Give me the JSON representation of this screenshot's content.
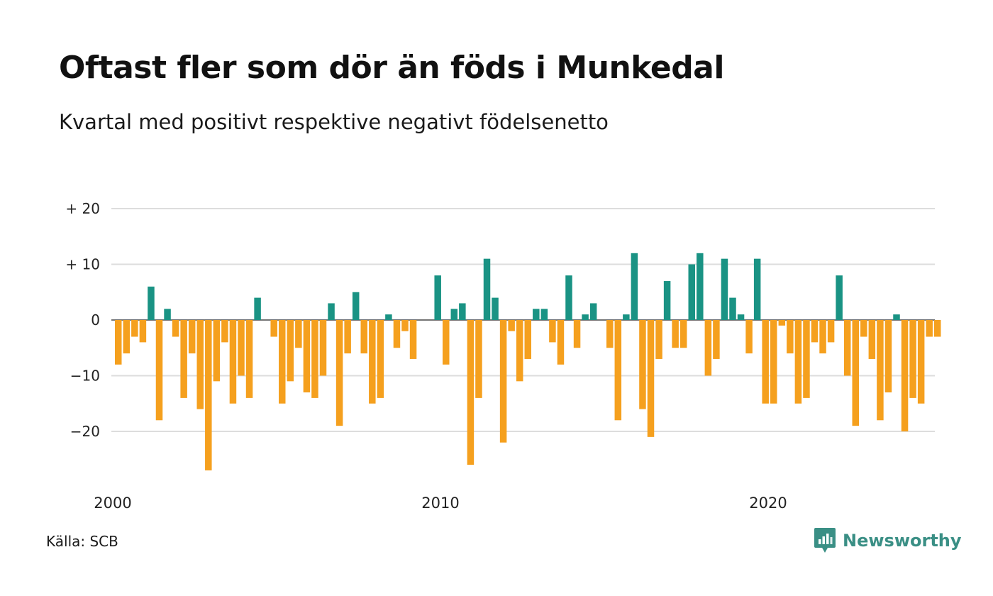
{
  "header": {
    "title": "Oftast fler som dör än föds i Munkedal",
    "subtitle": "Kvartal med positivt respektive negativt födelsenetto"
  },
  "footer": {
    "source": "Källa: SCB",
    "brand_name": "Newsworthy",
    "brand_icon": "newsworthy-logo-icon"
  },
  "colors": {
    "positive": "#1a9384",
    "negative": "#f5a01e",
    "grid": "#dddddd",
    "brand": "#3a8f85"
  },
  "chart_data": {
    "type": "bar",
    "xlabel": "",
    "ylabel": "",
    "ylim": [
      -29,
      20
    ],
    "yticks": [
      {
        "value": 20,
        "label": "+ 20"
      },
      {
        "value": 10,
        "label": "+ 10"
      },
      {
        "value": 0,
        "label": "0"
      },
      {
        "value": -10,
        "label": "−10"
      },
      {
        "value": -20,
        "label": "−20"
      }
    ],
    "xticks": [
      {
        "index": 0,
        "label": "2000"
      },
      {
        "index": 40,
        "label": "2010"
      },
      {
        "index": 80,
        "label": "2020"
      }
    ],
    "grid": true,
    "legend": "none",
    "x_start": "2000 Q1",
    "values": [
      -8,
      -6,
      -3,
      -4,
      6,
      -18,
      2,
      -3,
      -14,
      -6,
      -16,
      -27,
      -11,
      -4,
      -15,
      -10,
      -14,
      4,
      0,
      -3,
      -15,
      -11,
      -5,
      -13,
      -14,
      -10,
      3,
      -19,
      -6,
      5,
      -6,
      -15,
      -14,
      1,
      -5,
      -2,
      -7,
      0,
      0,
      8,
      -8,
      2,
      3,
      -26,
      -14,
      11,
      4,
      -22,
      -2,
      -11,
      -7,
      2,
      2,
      -4,
      -8,
      8,
      -5,
      1,
      3,
      0,
      -5,
      -18,
      1,
      12,
      -16,
      -21,
      -7,
      7,
      -5,
      -5,
      10,
      12,
      -10,
      -7,
      11,
      4,
      1,
      -6,
      11,
      -15,
      -15,
      -1,
      -6,
      -15,
      -14,
      -4,
      -6,
      -4,
      8,
      -10,
      -19,
      -3,
      -7,
      -18,
      -13,
      1,
      -20,
      -14,
      -15,
      -3,
      -3
    ]
  }
}
